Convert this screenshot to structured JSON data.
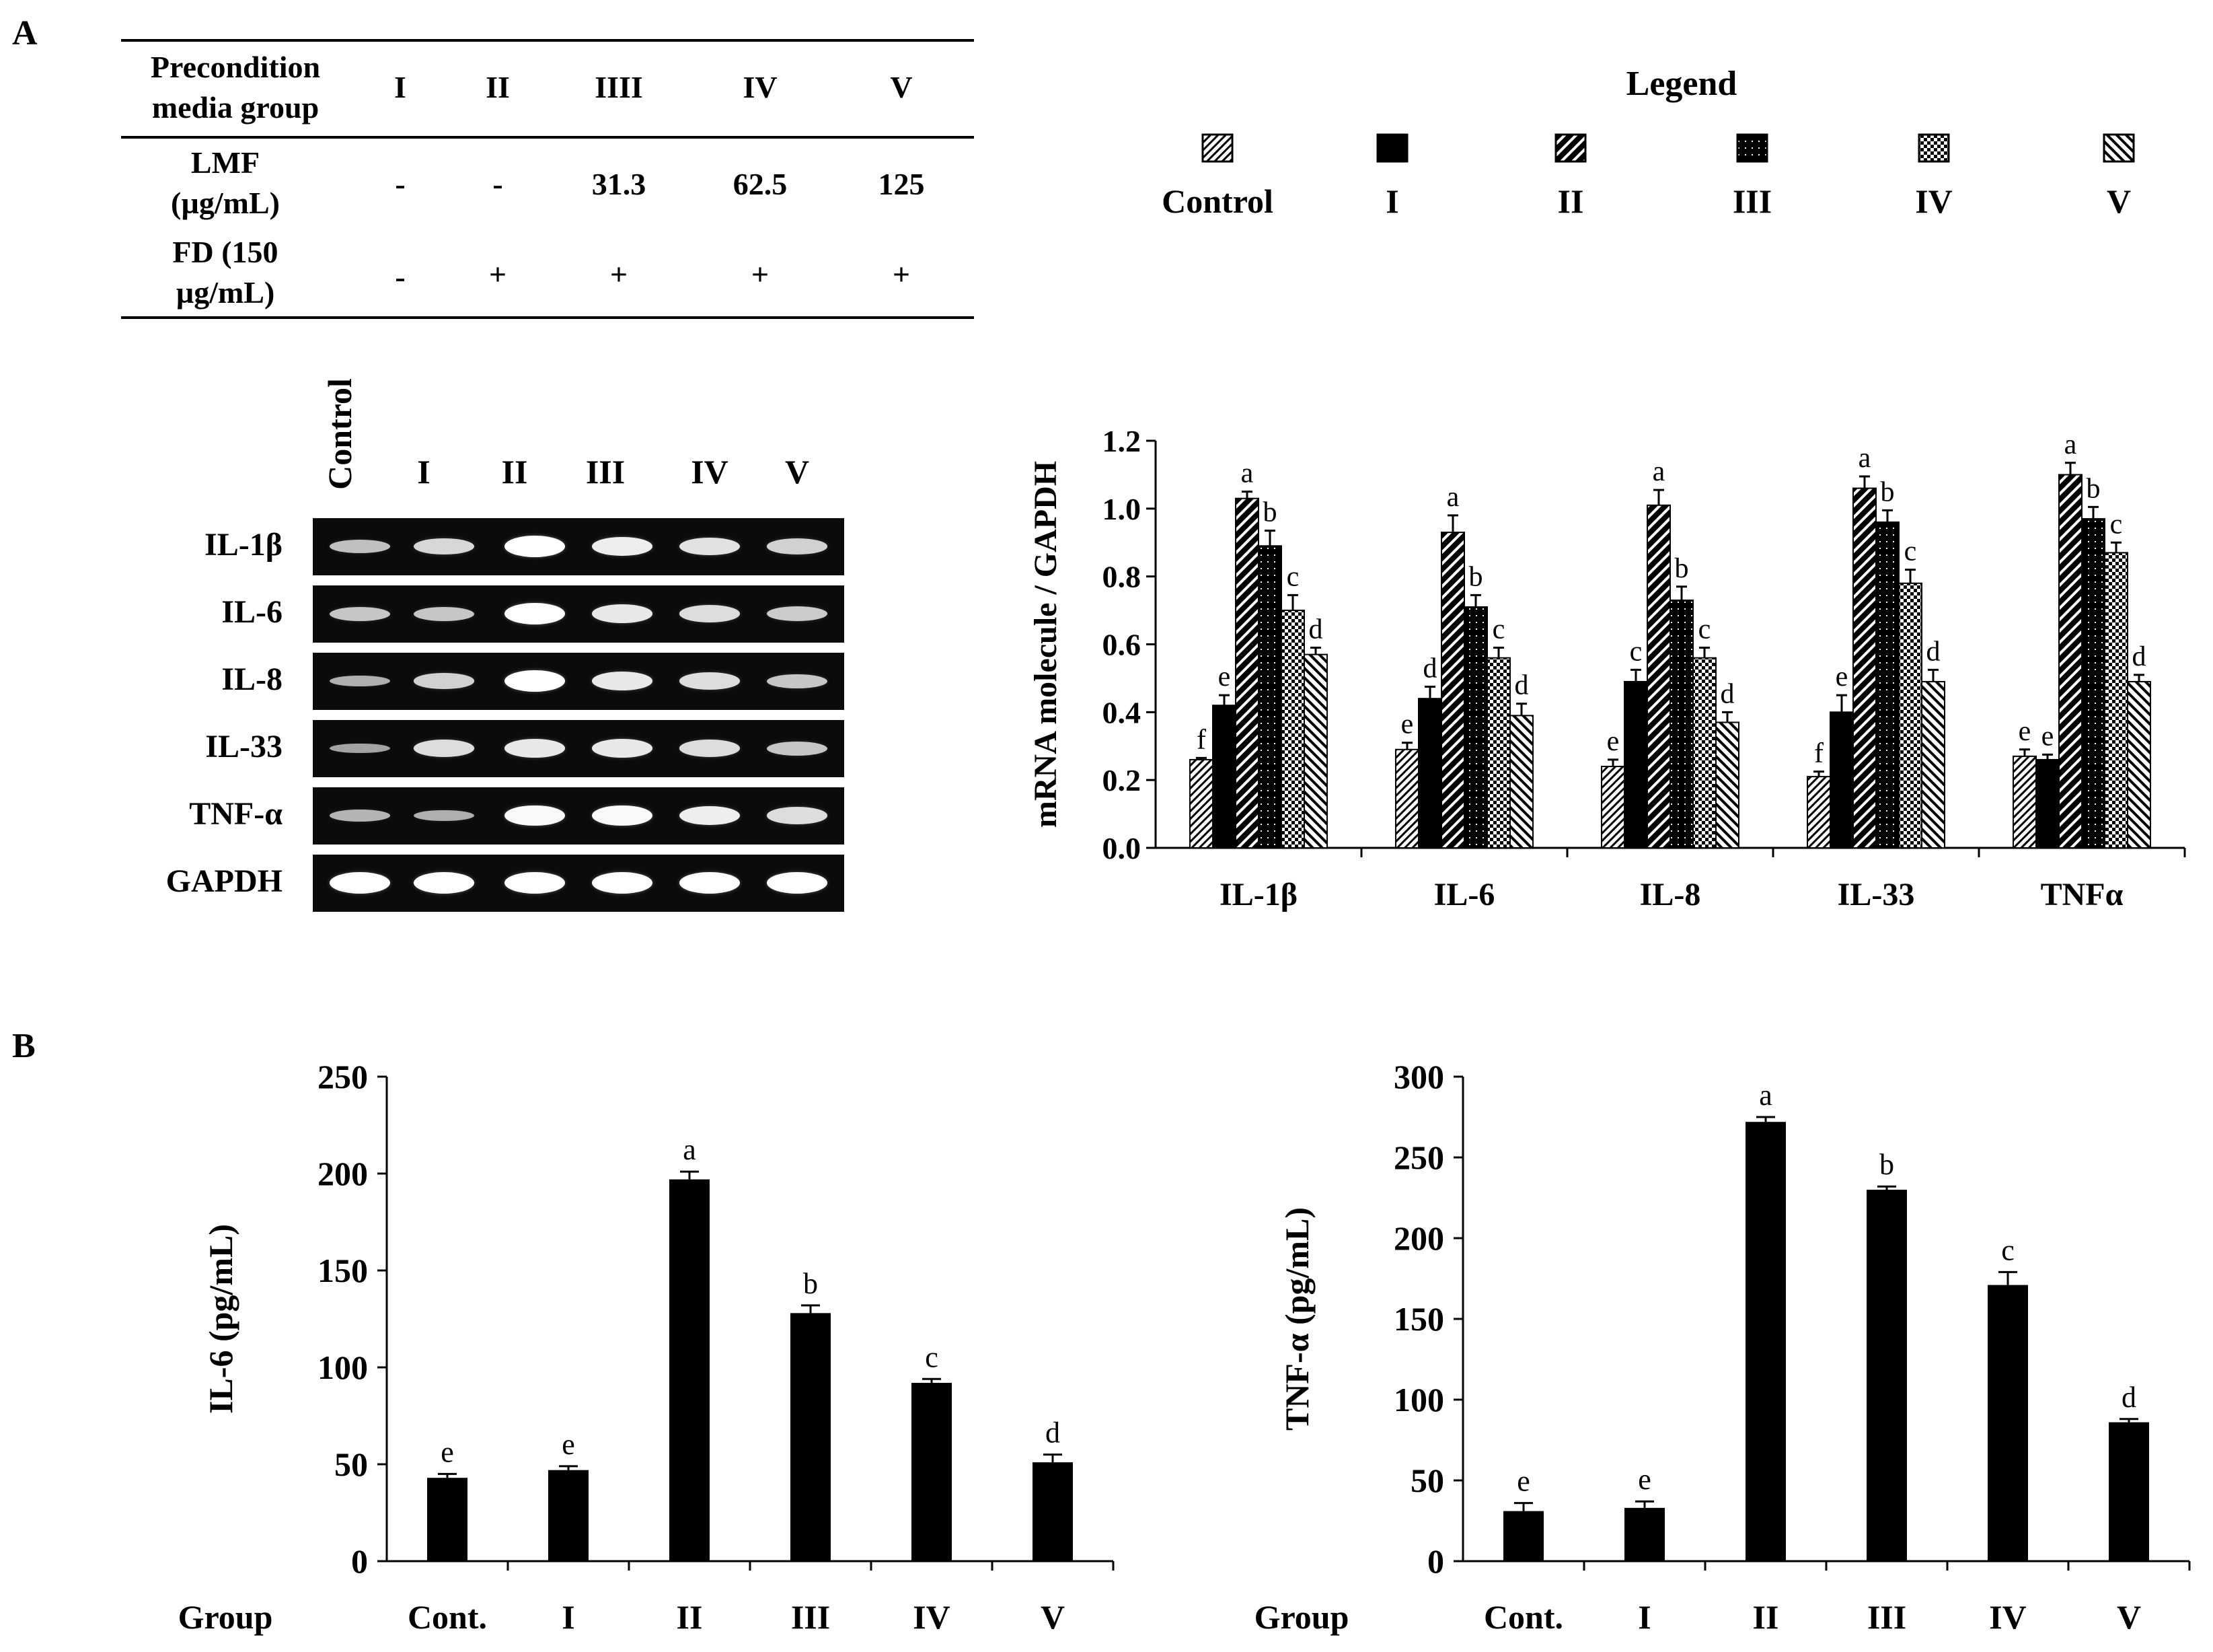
{
  "panels": {
    "a": "A",
    "b": "B"
  },
  "table": {
    "header": [
      "Precondition media group",
      "I",
      "II",
      "IIII",
      "IV",
      "V"
    ],
    "rows": [
      {
        "label": "LMF (µg/mL)",
        "values": [
          "-",
          "-",
          "31.3",
          "62.5",
          "125"
        ]
      },
      {
        "label": "FD (150 µg/mL)",
        "values": [
          "-",
          "+",
          "+",
          "+",
          "+"
        ]
      }
    ]
  },
  "legend": {
    "title": "Legend",
    "items": [
      {
        "label": "Control",
        "pattern": "dense-diag"
      },
      {
        "label": "I",
        "pattern": "solid"
      },
      {
        "label": "II",
        "pattern": "wide-diag"
      },
      {
        "label": "III",
        "pattern": "dots"
      },
      {
        "label": "IV",
        "pattern": "checker"
      },
      {
        "label": "V",
        "pattern": "back-diag"
      }
    ]
  },
  "gel": {
    "lanes": [
      "Control",
      "I",
      "II",
      "III",
      "IV",
      "V"
    ],
    "rows": [
      {
        "label": "IL-1β",
        "intensity": [
          0.45,
          0.65,
          1.0,
          0.85,
          0.75,
          0.6
        ]
      },
      {
        "label": "IL-6",
        "intensity": [
          0.5,
          0.5,
          1.0,
          0.8,
          0.7,
          0.55
        ]
      },
      {
        "label": "IL-8",
        "intensity": [
          0.3,
          0.6,
          1.0,
          0.8,
          0.7,
          0.5
        ]
      },
      {
        "label": "IL-33",
        "intensity": [
          0.2,
          0.7,
          0.8,
          0.8,
          0.7,
          0.5
        ]
      },
      {
        "label": "TNF-α",
        "intensity": [
          0.35,
          0.3,
          0.95,
          0.95,
          0.85,
          0.7
        ]
      },
      {
        "label": "GAPDH",
        "intensity": [
          1,
          1,
          1,
          1,
          1,
          1
        ]
      }
    ]
  },
  "chart_data": [
    {
      "id": "mrna",
      "type": "bar",
      "title": "",
      "xlabel": "",
      "ylabel": "mRNA molecule / GAPDH",
      "ylim": [
        0,
        1.2
      ],
      "yticks": [
        "0.0",
        "0.2",
        "0.4",
        "0.6",
        "0.8",
        "1.0",
        "1.2"
      ],
      "categories": [
        "IL-1β",
        "IL-6",
        "IL-8",
        "IL-33",
        "TNFα"
      ],
      "series": [
        {
          "name": "Control",
          "values": [
            0.26,
            0.29,
            0.24,
            0.21,
            0.27
          ],
          "errors": [
            0.005,
            0.02,
            0.02,
            0.015,
            0.02
          ],
          "letters": [
            "f",
            "e",
            "e",
            "f",
            "e"
          ]
        },
        {
          "name": "I",
          "values": [
            0.42,
            0.44,
            0.49,
            0.4,
            0.26
          ],
          "errors": [
            0.03,
            0.035,
            0.035,
            0.05,
            0.015
          ],
          "letters": [
            "e",
            "d",
            "c",
            "e",
            "e"
          ]
        },
        {
          "name": "II",
          "values": [
            1.03,
            0.93,
            1.01,
            1.06,
            1.1
          ],
          "errors": [
            0.02,
            0.05,
            0.045,
            0.035,
            0.035
          ],
          "letters": [
            "a",
            "a",
            "a",
            "a",
            "a"
          ]
        },
        {
          "name": "III",
          "values": [
            0.89,
            0.71,
            0.73,
            0.96,
            0.97
          ],
          "errors": [
            0.045,
            0.035,
            0.04,
            0.035,
            0.035
          ],
          "letters": [
            "b",
            "b",
            "b",
            "b",
            "b"
          ]
        },
        {
          "name": "IV",
          "values": [
            0.7,
            0.56,
            0.56,
            0.78,
            0.87
          ],
          "errors": [
            0.045,
            0.03,
            0.03,
            0.04,
            0.03
          ],
          "letters": [
            "c",
            "c",
            "c",
            "c",
            "c"
          ]
        },
        {
          "name": "V",
          "values": [
            0.57,
            0.39,
            0.37,
            0.49,
            0.49
          ],
          "errors": [
            0.02,
            0.035,
            0.03,
            0.035,
            0.02
          ],
          "letters": [
            "d",
            "d",
            "d",
            "d",
            "d"
          ]
        }
      ]
    },
    {
      "id": "il6",
      "type": "bar",
      "title": "",
      "xlabel": "Group",
      "ylabel": "IL-6 (pg/mL)",
      "ylim": [
        0,
        250
      ],
      "yticks": [
        "0",
        "50",
        "100",
        "150",
        "200",
        "250"
      ],
      "categories": [
        "Cont.",
        "I",
        "II",
        "III",
        "IV",
        "V"
      ],
      "values": [
        43,
        47,
        197,
        128,
        92,
        51
      ],
      "errors": [
        2,
        2,
        4,
        4,
        2,
        4
      ],
      "letters": [
        "e",
        "e",
        "a",
        "b",
        "c",
        "d"
      ]
    },
    {
      "id": "tnf",
      "type": "bar",
      "title": "",
      "xlabel": "Group",
      "ylabel": "TNF-α (pg/mL)",
      "ylim": [
        0,
        300
      ],
      "yticks": [
        "0",
        "50",
        "100",
        "150",
        "200",
        "250",
        "300"
      ],
      "categories": [
        "Cont.",
        "I",
        "II",
        "III",
        "IV",
        "V"
      ],
      "values": [
        31,
        33,
        272,
        230,
        171,
        86
      ],
      "errors": [
        5,
        4,
        3,
        2,
        8,
        2
      ],
      "letters": [
        "e",
        "e",
        "a",
        "b",
        "c",
        "d"
      ]
    }
  ]
}
